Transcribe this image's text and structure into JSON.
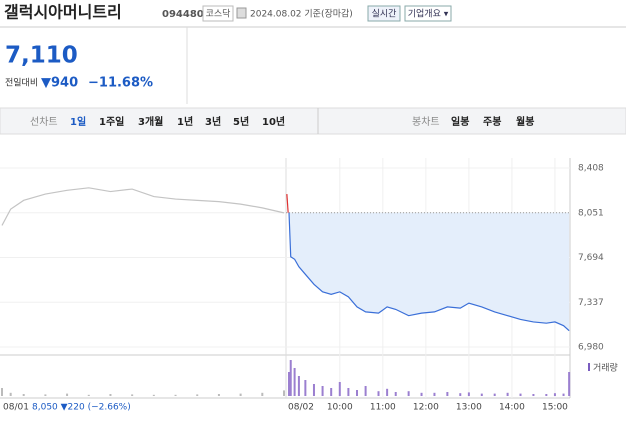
{
  "header": {
    "title": "갤럭시아머니트리",
    "code": "094480",
    "market": "코스닥",
    "date": "2024.08.02 기준(장마감)",
    "realtime": "실시간",
    "company": "기업개요 ▾"
  },
  "price": {
    "current": "7,110",
    "change_label": "전일대비",
    "change": "▼940",
    "rate": "−11.68%"
  },
  "tabs": {
    "line_label": "선차트",
    "periods": [
      "1일",
      "1주일",
      "3개월",
      "1년",
      "3년",
      "5년",
      "10년"
    ],
    "candle_label": "봉차트",
    "candles": [
      "일봉",
      "주봉",
      "월봉"
    ]
  },
  "chart": {
    "type": "line",
    "ylim": [
      6980,
      8408
    ],
    "yticks": [
      {
        "value": 8408,
        "label": "8,408"
      },
      {
        "value": 8051,
        "label": "8,051"
      },
      {
        "value": 7694,
        "label": "7,694"
      },
      {
        "value": 7337,
        "label": "7,337"
      },
      {
        "value": 6980,
        "label": "6,980"
      }
    ],
    "reference": 8051,
    "volume_label": "거래량",
    "day1": {
      "date": "08/01",
      "summary": "8,050 ▼220 (−2.66%)",
      "color": "#c4c4c4",
      "xlim": [
        9,
        15.5
      ],
      "x": [
        9.0,
        9.2,
        9.5,
        10.0,
        10.5,
        11.0,
        11.5,
        12.0,
        12.5,
        13.0,
        13.5,
        14.0,
        14.5,
        15.0,
        15.5
      ],
      "values": [
        7950,
        8080,
        8150,
        8200,
        8230,
        8250,
        8220,
        8240,
        8180,
        8160,
        8150,
        8140,
        8120,
        8090,
        8050
      ],
      "volume": [
        20,
        8,
        5,
        4,
        6,
        3,
        5,
        4,
        3,
        3,
        4,
        5,
        6,
        8,
        14
      ]
    },
    "day2": {
      "date": "08/02",
      "color": "#3a6fd8",
      "xlim": [
        8.75,
        15.35
      ],
      "xticks": [
        {
          "value": 10,
          "label": "10:00"
        },
        {
          "value": 11,
          "label": "11:00"
        },
        {
          "value": 12,
          "label": "12:00"
        },
        {
          "value": 13,
          "label": "13:00"
        },
        {
          "value": 14,
          "label": "14:00"
        },
        {
          "value": 15,
          "label": "15:00"
        }
      ],
      "opening": {
        "color": "#e03030",
        "x": [
          8.77,
          8.8
        ],
        "values": [
          8200,
          8051
        ]
      },
      "x": [
        8.82,
        8.86,
        8.95,
        9.05,
        9.2,
        9.4,
        9.6,
        9.8,
        10.0,
        10.2,
        10.4,
        10.6,
        10.9,
        11.1,
        11.3,
        11.6,
        11.9,
        12.2,
        12.5,
        12.8,
        13.0,
        13.3,
        13.6,
        13.9,
        14.2,
        14.5,
        14.8,
        15.0,
        15.2,
        15.33
      ],
      "values": [
        8051,
        7700,
        7680,
        7620,
        7560,
        7480,
        7420,
        7400,
        7420,
        7380,
        7300,
        7260,
        7250,
        7300,
        7280,
        7230,
        7250,
        7260,
        7300,
        7290,
        7330,
        7300,
        7260,
        7230,
        7200,
        7180,
        7170,
        7180,
        7150,
        7110
      ],
      "volume": [
        60,
        90,
        70,
        50,
        40,
        30,
        25,
        20,
        35,
        20,
        15,
        25,
        12,
        18,
        10,
        12,
        8,
        8,
        10,
        7,
        9,
        6,
        6,
        8,
        6,
        5,
        5,
        7,
        6,
        60
      ]
    }
  }
}
